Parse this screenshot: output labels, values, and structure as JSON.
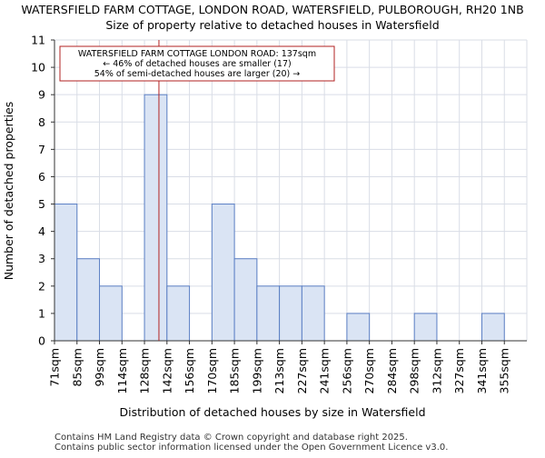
{
  "chart_data": {
    "type": "bar",
    "title": "WATERSFIELD FARM COTTAGE, LONDON ROAD, WATERSFIELD, PULBOROUGH, RH20 1NB",
    "subtitle": "Size of property relative to detached houses in Watersfield",
    "xlabel": "Distribution of detached houses by size in Watersfield",
    "ylabel": "Number of detached properties",
    "categories": [
      "71sqm",
      "85sqm",
      "99sqm",
      "114sqm",
      "128sqm",
      "142sqm",
      "156sqm",
      "170sqm",
      "185sqm",
      "199sqm",
      "213sqm",
      "227sqm",
      "241sqm",
      "256sqm",
      "270sqm",
      "284sqm",
      "298sqm",
      "312sqm",
      "327sqm",
      "341sqm",
      "355sqm"
    ],
    "values": [
      5,
      3,
      2,
      0,
      9,
      2,
      0,
      5,
      3,
      2,
      2,
      2,
      0,
      1,
      0,
      0,
      1,
      0,
      0,
      1,
      0
    ],
    "ylim": [
      0,
      11
    ],
    "yticks": [
      0,
      1,
      2,
      3,
      4,
      5,
      6,
      7,
      8,
      9,
      10,
      11
    ],
    "grid": true,
    "bar_fill": "#dae4f4",
    "bar_stroke": "#5b7fc4",
    "marker": {
      "value_sqm": 137,
      "color": "#b22222"
    },
    "annotation": {
      "lines": [
        "WATERSFIELD FARM COTTAGE LONDON ROAD: 137sqm",
        "← 46% of detached houses are smaller (17)",
        "54% of semi-detached houses are larger (20) →"
      ],
      "border_color": "#b22222"
    }
  },
  "footer": {
    "line1": "Contains HM Land Registry data © Crown copyright and database right 2025.",
    "line2": "Contains public sector information licensed under the Open Government Licence v3.0."
  }
}
